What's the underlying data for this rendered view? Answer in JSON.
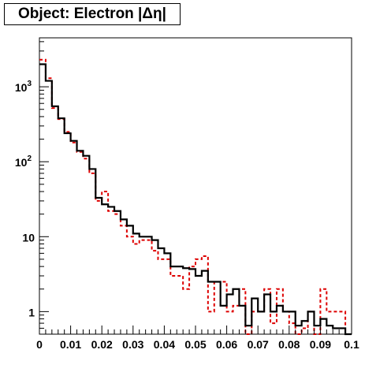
{
  "chart_data": {
    "type": "histogram",
    "title": "Object: Electron |Δη|",
    "xlabel": "",
    "ylabel": "",
    "xlim": [
      0,
      0.1
    ],
    "ylim": [
      0.5,
      4500
    ],
    "yscale": "log",
    "bin_width": 0.002,
    "x_ticks": [
      "0",
      "0.01",
      "0.02",
      "0.03",
      "0.04",
      "0.05",
      "0.06",
      "0.07",
      "0.08",
      "0.09",
      "0.1"
    ],
    "y_ticks": [
      {
        "base": "1",
        "exp": ""
      },
      {
        "base": "10",
        "exp": ""
      },
      {
        "base": "10",
        "exp": "2"
      },
      {
        "base": "10",
        "exp": "3"
      }
    ],
    "series": [
      {
        "color": "#000000",
        "style": "solid",
        "values": [
          2000,
          1200,
          550,
          380,
          240,
          190,
          140,
          120,
          80,
          33,
          27,
          25,
          22,
          17,
          14,
          11,
          10,
          10,
          9,
          7,
          6,
          4,
          4,
          3.8,
          3.7,
          3,
          3.5,
          2.5,
          2.5,
          1.2,
          1.7,
          2,
          1.2,
          0.65,
          1.5,
          1,
          1.7,
          1,
          1.2,
          1,
          1,
          0.65,
          0.75,
          1,
          0.65,
          0.8,
          0.65,
          0.6,
          0.6,
          0.5
        ]
      },
      {
        "color": "#dd0000",
        "style": "dashed",
        "values": [
          2300,
          1300,
          520,
          370,
          250,
          180,
          135,
          110,
          70,
          30,
          40,
          22,
          20,
          14,
          10,
          8,
          9,
          9,
          6.5,
          5,
          5,
          3,
          3,
          2,
          4,
          5,
          5.5,
          1,
          2.5,
          2.5,
          1,
          1.2,
          2,
          0.5,
          1,
          1,
          2,
          0.7,
          2,
          1,
          0.7,
          0.5,
          0.6,
          1,
          0.5,
          2,
          1,
          1,
          1,
          0.5
        ]
      }
    ]
  }
}
